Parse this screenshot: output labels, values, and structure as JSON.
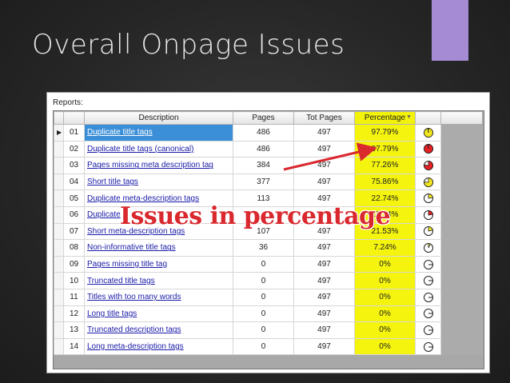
{
  "slide": {
    "title": "Overall Onpage Issues",
    "accent_color": "#a58bd3"
  },
  "panel": {
    "label": "Reports:"
  },
  "table": {
    "headers": {
      "description": "Description",
      "pages": "Pages",
      "tot_pages": "Tot Pages",
      "percentage": "Percentage"
    },
    "highlight_color": "#f4f40e",
    "rows": [
      {
        "num": "01",
        "description": "Duplicate title tags",
        "pages": "486",
        "tot_pages": "497",
        "percentage": "97.79%",
        "fraction": 0.9779,
        "pie_color": "#f2e620",
        "selected": true
      },
      {
        "num": "02",
        "description": "Duplicate title tags (canonical)",
        "pages": "486",
        "tot_pages": "497",
        "percentage": "97.79%",
        "fraction": 0.9779,
        "pie_color": "#e32024"
      },
      {
        "num": "03",
        "description": "Pages missing meta description tag",
        "pages": "384",
        "tot_pages": "497",
        "percentage": "77.26%",
        "fraction": 0.7726,
        "pie_color": "#e32024"
      },
      {
        "num": "04",
        "description": "Short title tags",
        "pages": "377",
        "tot_pages": "497",
        "percentage": "75.86%",
        "fraction": 0.7586,
        "pie_color": "#f2e620"
      },
      {
        "num": "05",
        "description": "Duplicate meta-description tags",
        "pages": "113",
        "tot_pages": "497",
        "percentage": "22.74%",
        "fraction": 0.2274,
        "pie_color": "#f2e620"
      },
      {
        "num": "06",
        "description": "Duplicate",
        "pages": "",
        "tot_pages": "",
        "percentage": "22.74%",
        "fraction": 0.2274,
        "pie_color": "#e32024"
      },
      {
        "num": "07",
        "description": "Short meta-description tags",
        "pages": "107",
        "tot_pages": "497",
        "percentage": "21.53%",
        "fraction": 0.2153,
        "pie_color": "#f2e620"
      },
      {
        "num": "08",
        "description": "Non-informative title tags",
        "pages": "36",
        "tot_pages": "497",
        "percentage": "7.24%",
        "fraction": 0.0724,
        "pie_color": "#f2e620"
      },
      {
        "num": "09",
        "description": "Pages missing title tag",
        "pages": "0",
        "tot_pages": "497",
        "percentage": "0%",
        "fraction": 0,
        "pie_color": "#ffffff"
      },
      {
        "num": "10",
        "description": "Truncated title tags",
        "pages": "0",
        "tot_pages": "497",
        "percentage": "0%",
        "fraction": 0,
        "pie_color": "#ffffff"
      },
      {
        "num": "11",
        "description": "Titles with too many words",
        "pages": "0",
        "tot_pages": "497",
        "percentage": "0%",
        "fraction": 0,
        "pie_color": "#ffffff"
      },
      {
        "num": "12",
        "description": "Long title tags",
        "pages": "0",
        "tot_pages": "497",
        "percentage": "0%",
        "fraction": 0,
        "pie_color": "#ffffff"
      },
      {
        "num": "13",
        "description": "Truncated description tags",
        "pages": "0",
        "tot_pages": "497",
        "percentage": "0%",
        "fraction": 0,
        "pie_color": "#ffffff"
      },
      {
        "num": "14",
        "description": "Long meta-description tags",
        "pages": "0",
        "tot_pages": "497",
        "percentage": "0%",
        "fraction": 0,
        "pie_color": "#ffffff"
      }
    ]
  },
  "annotation": {
    "text": "Issues in percentage",
    "color": "#d9282e"
  },
  "icons": {
    "row_pointer": "row-pointer-icon",
    "sort": "sort-arrow-icon",
    "pie": "pie-chart-icon"
  }
}
